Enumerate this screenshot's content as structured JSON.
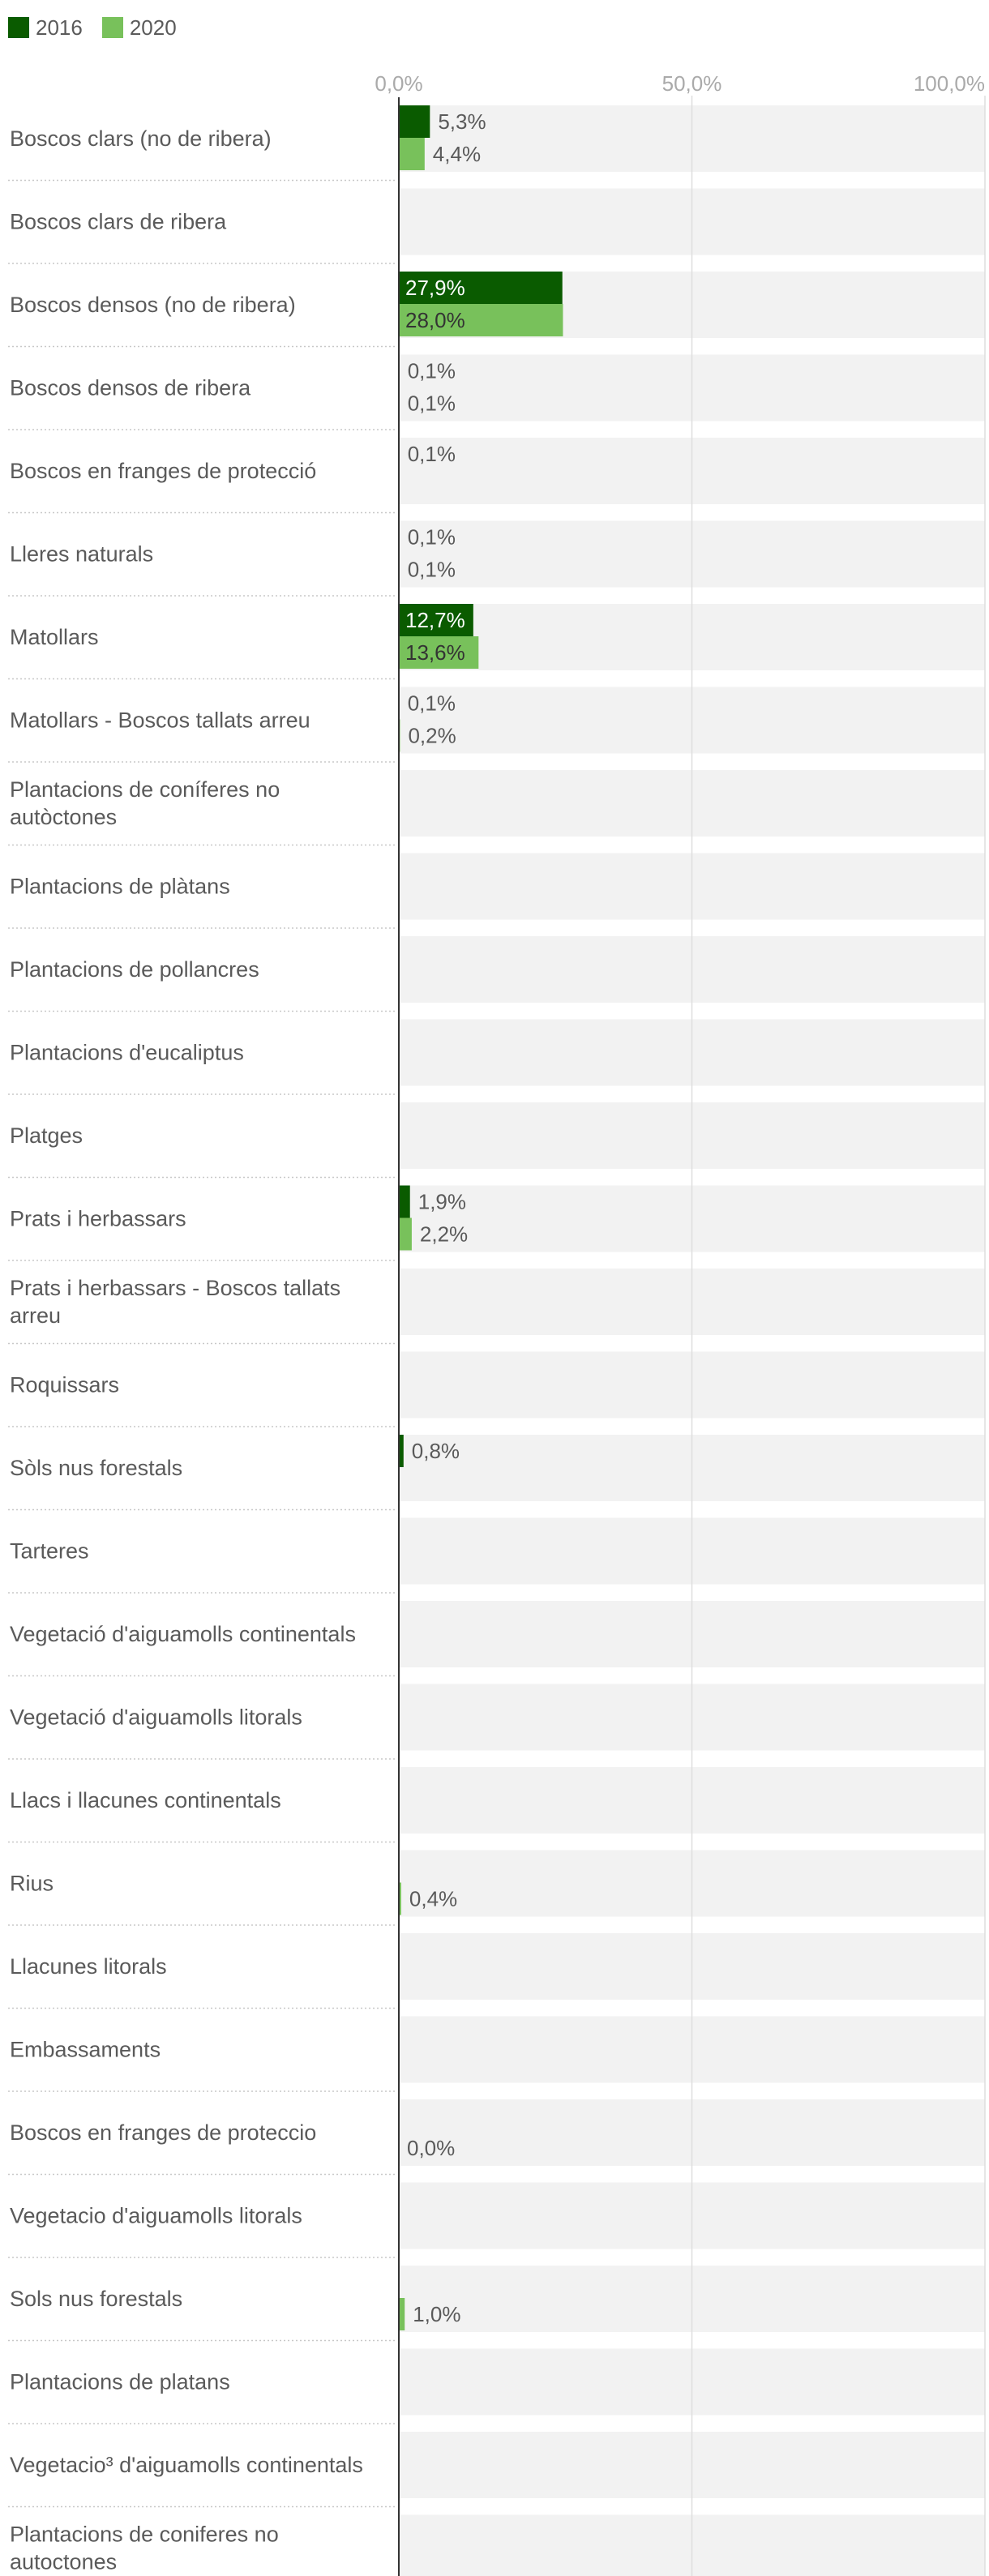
{
  "chart_data": {
    "type": "bar",
    "orientation": "horizontal",
    "xlim": [
      0,
      100
    ],
    "ticks": [
      0,
      50,
      100
    ],
    "tick_labels": [
      "0,0%",
      "50,0%",
      "100,0%"
    ],
    "grid": true,
    "legend_position": "top-left",
    "colors": {
      "2016": "#0a5b00",
      "2020": "#78c15b",
      "track": "#f2f2f2",
      "label_inside": "#ffffff",
      "label_inside_light": "#333333"
    },
    "categories": [
      "Boscos clars (no de ribera)",
      "Boscos clars de ribera",
      "Boscos densos (no de ribera)",
      "Boscos densos de ribera",
      "Boscos en franges de protecció",
      "Lleres naturals",
      "Matollars",
      "Matollars - Boscos tallats arreu",
      "Plantacions de coníferes no autòctones",
      "Plantacions de plàtans",
      "Plantacions de pollancres",
      "Plantacions d'eucaliptus",
      "Platges",
      "Prats i herbassars",
      "Prats i herbassars - Boscos tallats arreu",
      "Roquissars",
      "Sòls nus forestals",
      "Tarteres",
      "Vegetació d'aiguamolls continentals",
      "Vegetació d'aiguamolls litorals",
      "Llacs i llacunes continentals",
      "Rius",
      "Llacunes litorals",
      "Embassaments",
      "Boscos en franges de proteccio",
      "Vegetacio d'aiguamolls litorals",
      "Sols nus forestals",
      "Plantacions de platans",
      "Vegetacio³ d'aiguamolls continentals",
      "Plantacions de coniferes no autoctones"
    ],
    "series": [
      {
        "name": "2016",
        "values": [
          5.3,
          null,
          27.9,
          0.1,
          0.1,
          0.1,
          12.7,
          0.1,
          null,
          null,
          null,
          null,
          null,
          1.9,
          null,
          null,
          0.8,
          null,
          null,
          null,
          null,
          null,
          null,
          null,
          null,
          null,
          null,
          null,
          null,
          null
        ],
        "labels": [
          "5,3%",
          "",
          "27,9%",
          "0,1%",
          "0,1%",
          "0,1%",
          "12,7%",
          "0,1%",
          "",
          "",
          "",
          "",
          "",
          "1,9%",
          "",
          "",
          "0,8%",
          "",
          "",
          "",
          "",
          "",
          "",
          "",
          "",
          "",
          "",
          "",
          "",
          ""
        ]
      },
      {
        "name": "2020",
        "values": [
          4.4,
          null,
          28.0,
          0.1,
          null,
          0.1,
          13.6,
          0.2,
          null,
          null,
          null,
          null,
          null,
          2.2,
          null,
          null,
          null,
          null,
          null,
          null,
          null,
          0.4,
          null,
          null,
          0.0,
          null,
          1.0,
          null,
          null,
          null
        ],
        "labels": [
          "4,4%",
          "",
          "28,0%",
          "0,1%",
          "",
          "0,1%",
          "13,6%",
          "0,2%",
          "",
          "",
          "",
          "",
          "",
          "2,2%",
          "",
          "",
          "",
          "",
          "",
          "",
          "",
          "0,4%",
          "",
          "",
          "0,0%",
          "",
          "1,0%",
          "",
          "",
          ""
        ]
      }
    ]
  }
}
